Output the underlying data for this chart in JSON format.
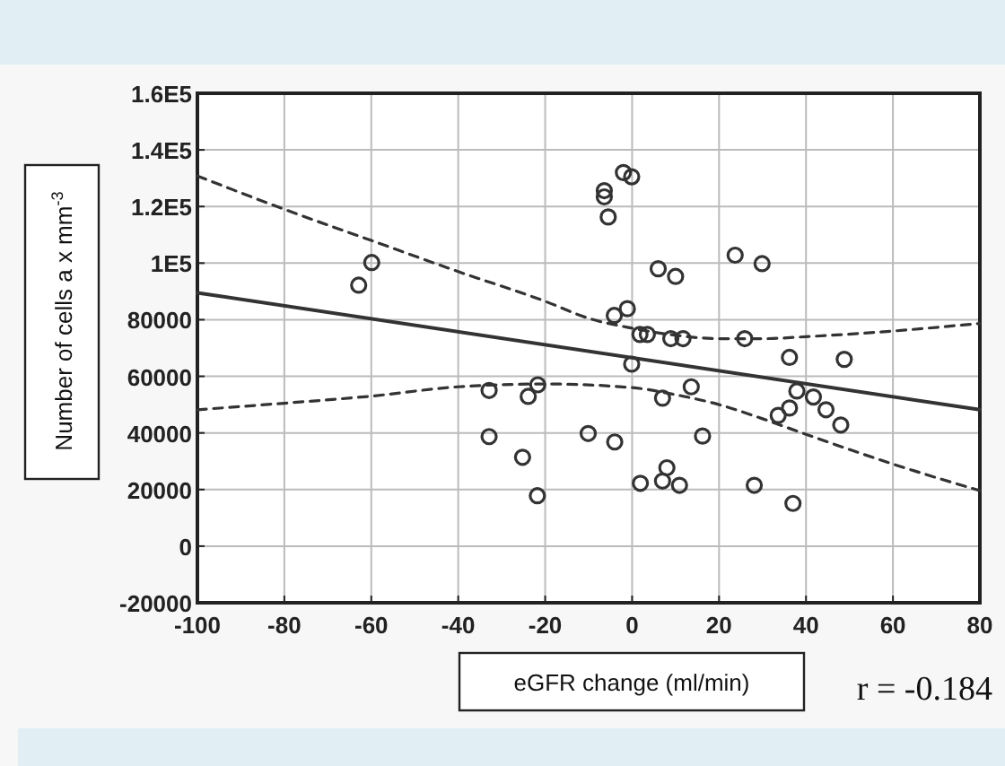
{
  "chart_data": {
    "type": "scatter",
    "xlabel": "eGFR change  (ml/min)",
    "ylabel": "Number of cells a x mm$^{-3}$",
    "annotations": [
      "r = -0.184"
    ],
    "xlim": [
      -100,
      80
    ],
    "xticks": [
      -100,
      -80,
      -60,
      -40,
      -20,
      0,
      20,
      40,
      60,
      80
    ],
    "ylim": [
      -20000,
      160000
    ],
    "yticks": [
      -20000,
      0,
      20000,
      40000,
      60000,
      80000,
      {
        "value": 100000,
        "label": "1E5"
      },
      {
        "value": 120000,
        "label": "1.2E5"
      },
      {
        "value": 140000,
        "label": "1.4E5"
      },
      {
        "value": 160000,
        "label": "1.6E5"
      }
    ],
    "grid": true,
    "series": [
      {
        "color": "#333333",
        "marker": "circle",
        "x": [
          -62.9,
          -59.9,
          -32.9,
          -32.9,
          -25.2,
          -23.9,
          -21.7,
          -21.8,
          -10.1,
          -6.4,
          -6.4,
          -5.5,
          -4.1,
          -4.0,
          -2.0,
          -1.1,
          -0.1,
          -0.1,
          1.8,
          1.9,
          3.5,
          6.0,
          7.0,
          7.0,
          8.0,
          8.9,
          10.0,
          10.9,
          11.7,
          13.6,
          16.2,
          23.7,
          25.9,
          28.1,
          29.9,
          33.6,
          36.2,
          36.2,
          37.0,
          37.9,
          41.7,
          44.6,
          48.0,
          48.8
        ],
        "values": [
          92200,
          100200,
          55000,
          38700,
          31400,
          52900,
          57000,
          17800,
          39800,
          125600,
          123400,
          116300,
          81500,
          36800,
          132000,
          83900,
          130500,
          64300,
          74800,
          22200,
          74800,
          98000,
          52300,
          23000,
          27700,
          73300,
          95300,
          21500,
          73300,
          56300,
          38900,
          102800,
          73300,
          21500,
          99800,
          46200,
          66700,
          48800,
          15100,
          54800,
          52700,
          48200,
          42800,
          66000
        ]
      },
      {
        "type": "line",
        "color": "#333333",
        "marker": "none",
        "line_style": "solid",
        "x": [
          -100,
          80
        ],
        "values": [
          89500,
          48200
        ]
      },
      {
        "type": "line",
        "color": "#333333",
        "marker": "none",
        "line_style": "dashed",
        "x": [
          -100,
          -80,
          -60,
          -40,
          -20,
          -10,
          0,
          10,
          20,
          30,
          40,
          60,
          80
        ],
        "values": [
          130800,
          119000,
          108000,
          97000,
          86500,
          80500,
          77000,
          74500,
          73300,
          73300,
          74000,
          76000,
          78700
        ]
      },
      {
        "type": "line",
        "color": "#333333",
        "marker": "none",
        "line_style": "dashed",
        "x": [
          -100,
          -80,
          -60,
          -40,
          -20,
          0,
          10,
          20,
          30,
          40,
          60,
          80
        ],
        "values": [
          48200,
          50500,
          53000,
          56300,
          57300,
          56000,
          53500,
          50000,
          45000,
          39500,
          29000,
          19600
        ]
      }
    ]
  }
}
